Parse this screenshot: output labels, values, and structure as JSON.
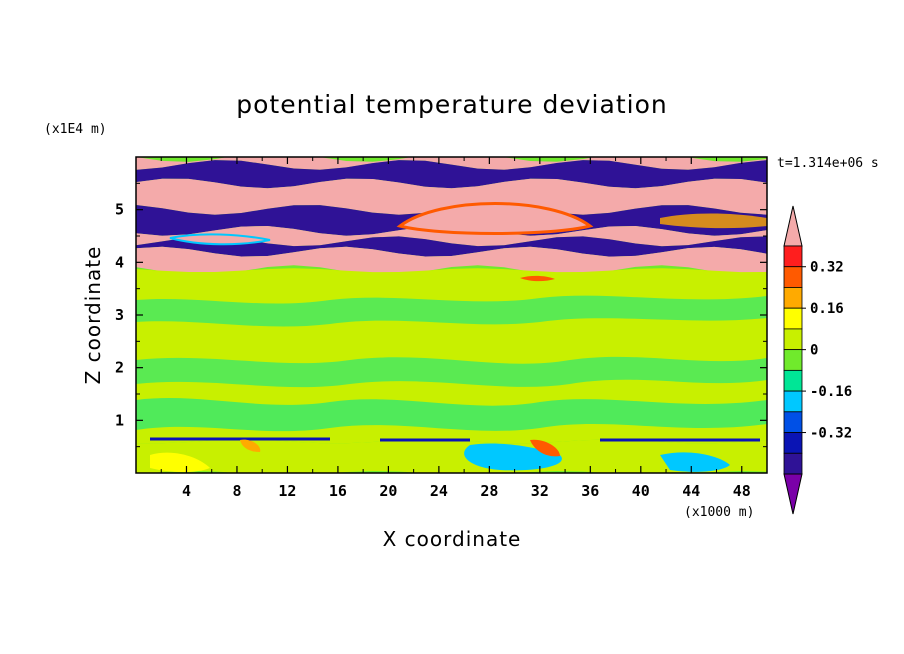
{
  "chart_data": {
    "type": "heatmap",
    "title": "potential temperature deviation",
    "xlabel": "X coordinate",
    "ylabel": "Z coordinate",
    "x_unit": "(x1000 m)",
    "y_unit": "(x1E4 m)",
    "time_label": "t=1.314e+06 s",
    "xlim": [
      0,
      50
    ],
    "ylim": [
      0,
      6
    ],
    "x_ticks": [
      "4",
      "8",
      "12",
      "16",
      "20",
      "24",
      "28",
      "32",
      "36",
      "40",
      "44",
      "48"
    ],
    "y_ticks": [
      "1",
      "2",
      "3",
      "4",
      "5"
    ],
    "colorbar": {
      "levels": [
        -0.48,
        -0.4,
        -0.32,
        -0.24,
        -0.16,
        -0.08,
        0,
        0.08,
        0.16,
        0.24,
        0.32,
        0.4
      ],
      "colors": [
        "#7a00a8",
        "#2f1296",
        "#0a14b4",
        "#0050e6",
        "#00c8ff",
        "#00e696",
        "#70ea2c",
        "#c8f000",
        "#ffff00",
        "#ffaa00",
        "#ff5a00",
        "#ff1e1e",
        "#f4aaaa"
      ],
      "tick_labels": [
        "0.32",
        "0.16",
        "0",
        "-0.16",
        "-0.32"
      ],
      "tick_values": [
        0.32,
        0.16,
        0,
        -0.16,
        -0.32
      ]
    },
    "layers": [
      {
        "z": [
          5.85,
          6.0
        ],
        "value": 0.45
      },
      {
        "z": [
          5.5,
          5.85
        ],
        "value": -0.45
      },
      {
        "z": [
          5.0,
          5.5
        ],
        "value": 0.45
      },
      {
        "z": [
          4.6,
          5.0
        ],
        "value": -0.45
      },
      {
        "z": [
          4.4,
          4.6
        ],
        "value": 0.45
      },
      {
        "z": [
          4.2,
          4.4
        ],
        "value": -0.45
      },
      {
        "z": [
          3.85,
          4.2
        ],
        "value": 0.45
      },
      {
        "z": [
          0.6,
          3.85
        ],
        "value": 0.0
      },
      {
        "z": [
          0.0,
          0.6
        ],
        "value": 0.05
      }
    ]
  }
}
